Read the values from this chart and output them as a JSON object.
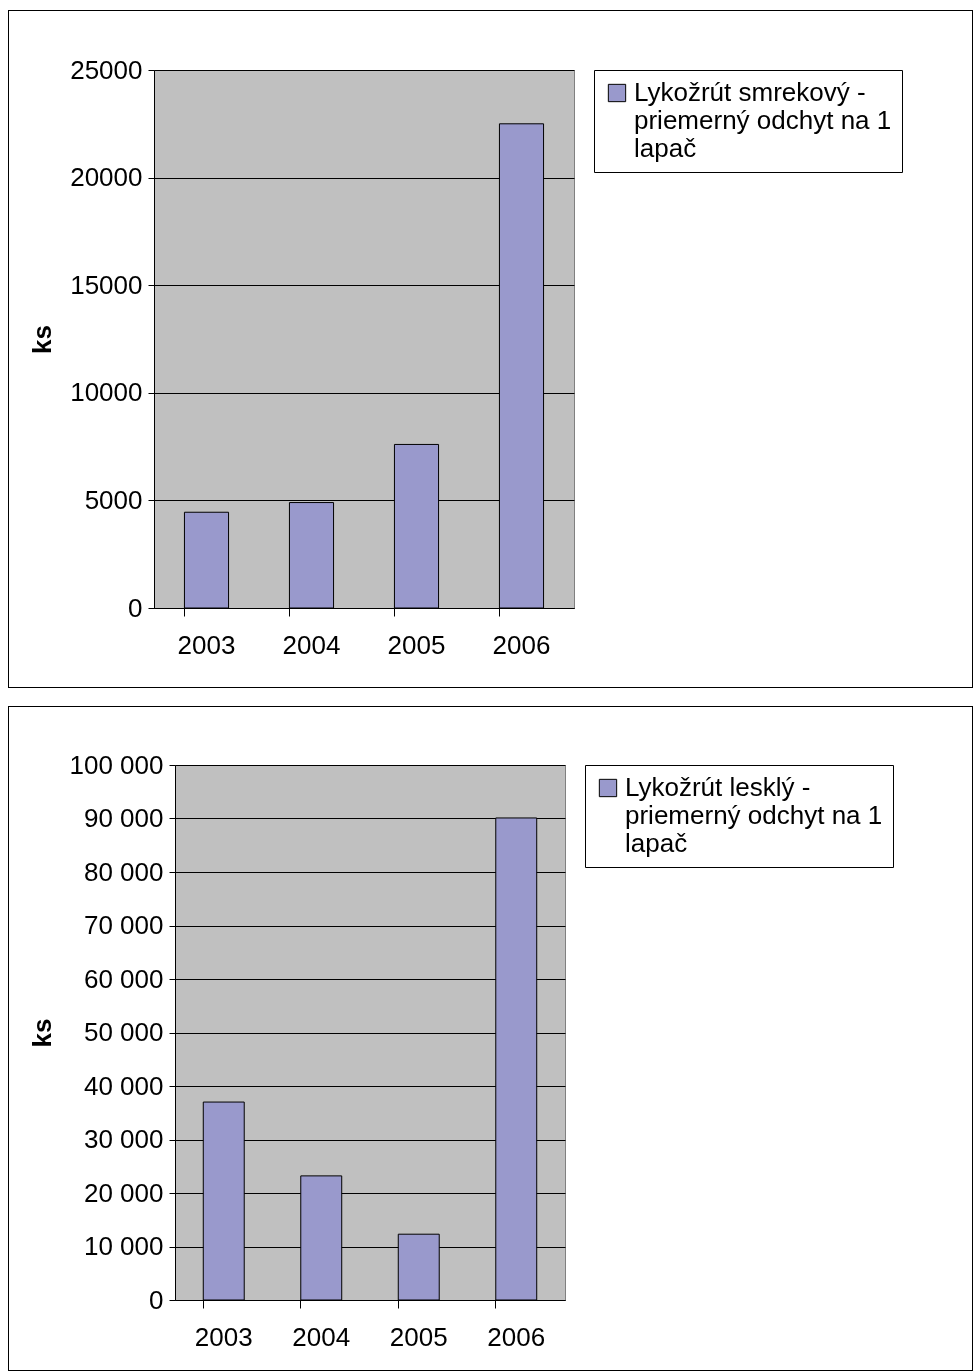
{
  "chart_data": [
    {
      "type": "bar",
      "categories": [
        "2003",
        "2004",
        "2005",
        "2006"
      ],
      "ylabel": "ks",
      "ylim": [
        0,
        25000
      ],
      "yticks": [
        0,
        5000,
        10000,
        15000,
        20000,
        25000
      ],
      "grid": "y",
      "legend": "right",
      "series": [
        {
          "name": "Lykožrút smrekový - priemerný odchyt na 1 lapač",
          "color": "#9999cc",
          "values": [
            4450,
            4900,
            7600,
            22500
          ]
        }
      ]
    },
    {
      "type": "bar",
      "categories": [
        "2003",
        "2004",
        "2005",
        "2006"
      ],
      "ylabel": "ks",
      "ylim": [
        0,
        100000
      ],
      "yticks": [
        0,
        {
          "value": 10000,
          "label": "10 000"
        },
        {
          "value": 20000,
          "label": "20 000"
        },
        {
          "value": 30000,
          "label": "30 000"
        },
        {
          "value": 40000,
          "label": "40 000"
        },
        {
          "value": 50000,
          "label": "50 000"
        },
        {
          "value": 60000,
          "label": "60 000"
        },
        {
          "value": 70000,
          "label": "70 000"
        },
        {
          "value": 80000,
          "label": "80 000"
        },
        {
          "value": 90000,
          "label": "90 000"
        },
        {
          "value": 100000,
          "label": "100 000"
        }
      ],
      "grid": "y",
      "legend": "right",
      "series": [
        {
          "name": "Lykožrút lesklý - priemerný odchyt na 1 lapač",
          "color": "#9999cc",
          "values": [
            37000,
            23200,
            12300,
            90100
          ]
        }
      ]
    }
  ]
}
